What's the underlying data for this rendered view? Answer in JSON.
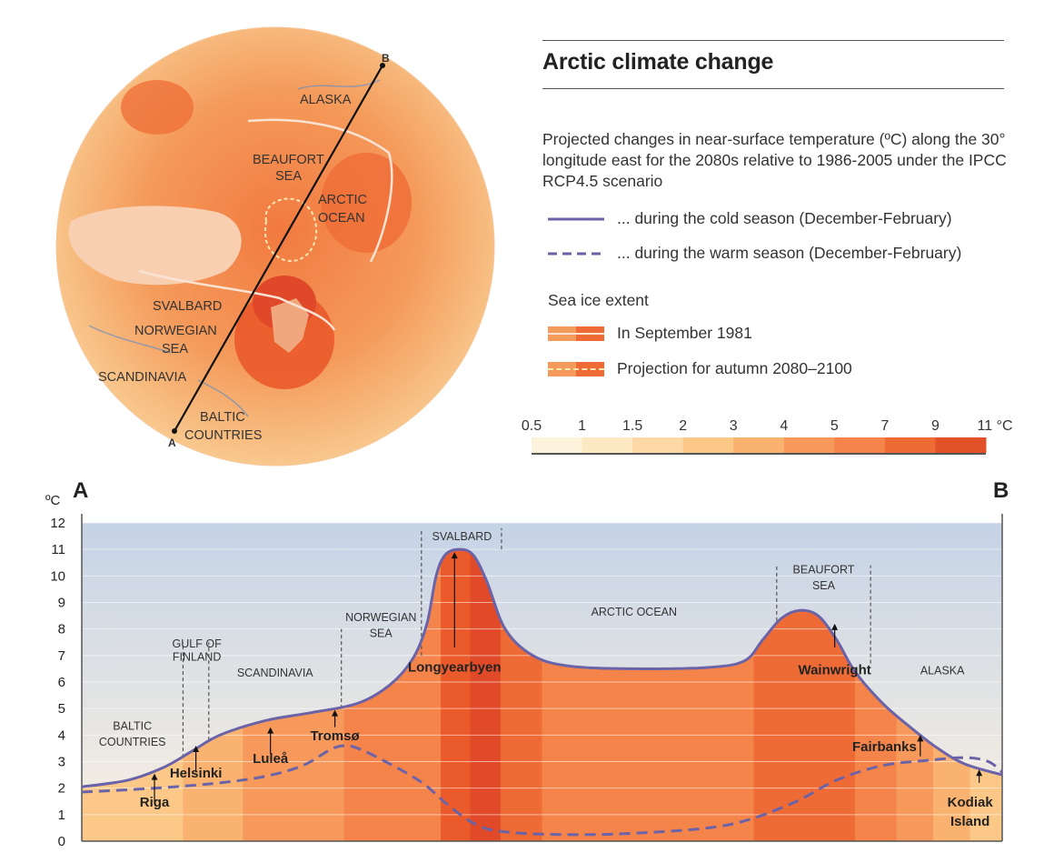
{
  "title": "Arctic climate change",
  "description": "Projected changes in near-surface temperature (ºC) along the 30° longitude east for the 2080s relative to 1986-2005 under the IPCC RCP4.5 scenario",
  "legend": {
    "cold": "... during the cold season (December-February)",
    "warm": "... during the warm season (December-February)",
    "ice_heading": "Sea ice extent",
    "ice_1981": "In September 1981",
    "ice_proj": "Projection for autumn 2080–2100"
  },
  "color_scale": {
    "labels": [
      "0.5",
      "1",
      "1.5",
      "2",
      "3",
      "4",
      "5",
      "7",
      "9",
      "11 °C"
    ],
    "colors": [
      "#fdf3dc",
      "#fde8c4",
      "#fcd9a6",
      "#fbc888",
      "#f9b26f",
      "#f7995b",
      "#f5844b",
      "#ef6b35",
      "#e35128"
    ]
  },
  "map": {
    "labels": {
      "alaska": "ALASKA",
      "beaufort1": "BEAUFORT",
      "beaufort2": "SEA",
      "arctic1": "ARCTIC",
      "arctic2": "OCEAN",
      "svalbard": "SVALBARD",
      "norwegian1": "NORWEGIAN",
      "norwegian2": "SEA",
      "scandinavia": "SCANDINAVIA",
      "baltic1": "BALTIC",
      "baltic2": "COUNTRIES",
      "point_a": "A",
      "point_b": "B"
    }
  },
  "chart_data": {
    "type": "line",
    "title": "",
    "xlabel": "",
    "ylabel": "ºC",
    "ylim": [
      0,
      12
    ],
    "yticks": [
      0,
      1,
      2,
      3,
      4,
      5,
      6,
      7,
      8,
      9,
      10,
      11,
      12
    ],
    "endpoints": {
      "start": "A",
      "end": "B"
    },
    "series": [
      {
        "name": "... during the cold season (December-February)",
        "style": "solid",
        "color": "#6b63a8",
        "points": [
          [
            0,
            2.05
          ],
          [
            0.05,
            2.3
          ],
          [
            0.09,
            2.8
          ],
          [
            0.12,
            3.4
          ],
          [
            0.15,
            4.0
          ],
          [
            0.2,
            4.55
          ],
          [
            0.25,
            4.85
          ],
          [
            0.3,
            5.2
          ],
          [
            0.335,
            5.9
          ],
          [
            0.36,
            6.9
          ],
          [
            0.375,
            8.2
          ],
          [
            0.385,
            10.0
          ],
          [
            0.395,
            10.8
          ],
          [
            0.41,
            11.0
          ],
          [
            0.425,
            10.8
          ],
          [
            0.44,
            9.8
          ],
          [
            0.46,
            8.0
          ],
          [
            0.49,
            7.0
          ],
          [
            0.53,
            6.6
          ],
          [
            0.6,
            6.5
          ],
          [
            0.68,
            6.55
          ],
          [
            0.72,
            6.8
          ],
          [
            0.74,
            7.6
          ],
          [
            0.76,
            8.4
          ],
          [
            0.78,
            8.7
          ],
          [
            0.8,
            8.5
          ],
          [
            0.82,
            7.6
          ],
          [
            0.84,
            6.4
          ],
          [
            0.87,
            5.2
          ],
          [
            0.9,
            4.3
          ],
          [
            0.93,
            3.5
          ],
          [
            0.96,
            2.9
          ],
          [
            1,
            2.5
          ]
        ]
      },
      {
        "name": "... during the warm season (December-February)",
        "style": "dashed",
        "color": "#6b63a8",
        "points": [
          [
            0,
            1.85
          ],
          [
            0.08,
            2.0
          ],
          [
            0.15,
            2.2
          ],
          [
            0.2,
            2.45
          ],
          [
            0.24,
            2.85
          ],
          [
            0.27,
            3.45
          ],
          [
            0.285,
            3.6
          ],
          [
            0.3,
            3.5
          ],
          [
            0.33,
            3.0
          ],
          [
            0.37,
            2.2
          ],
          [
            0.4,
            1.3
          ],
          [
            0.43,
            0.6
          ],
          [
            0.46,
            0.35
          ],
          [
            0.52,
            0.25
          ],
          [
            0.6,
            0.3
          ],
          [
            0.7,
            0.6
          ],
          [
            0.77,
            1.4
          ],
          [
            0.82,
            2.3
          ],
          [
            0.87,
            2.85
          ],
          [
            0.92,
            3.05
          ],
          [
            0.96,
            3.15
          ],
          [
            0.985,
            3.0
          ],
          [
            1,
            2.6
          ]
        ]
      }
    ],
    "regions": [
      "BALTIC COUNTRIES",
      "GULF OF FINLAND",
      "SCANDINAVIA",
      "NORWEGIAN SEA",
      "SVALBARD",
      "ARCTIC OCEAN",
      "BEAUFORT SEA",
      "ALASKA"
    ],
    "annotations": [
      "Riga",
      "Helsinki",
      "Luleå",
      "Tromsø",
      "Longyearbyen",
      "Wainwright",
      "Fairbanks",
      "Kodiak Island"
    ]
  }
}
